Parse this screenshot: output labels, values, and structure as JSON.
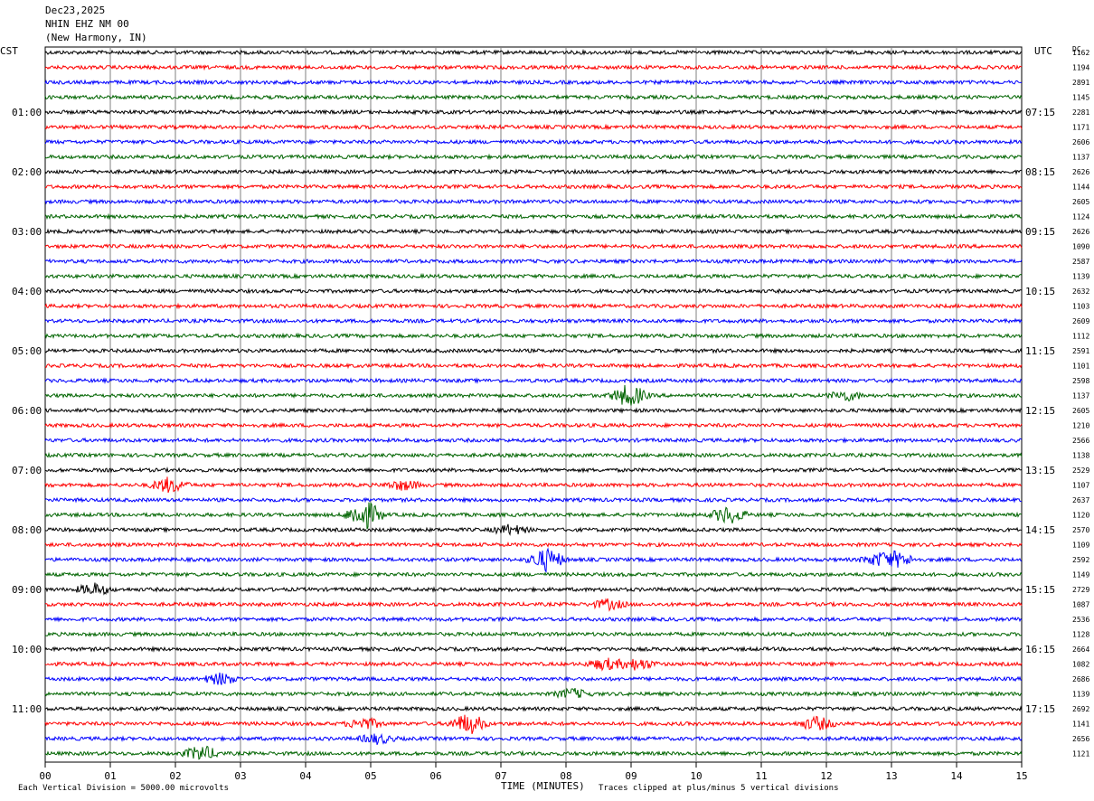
{
  "header": {
    "date": "Dec23,2025",
    "station": "NHIN EHZ NM 00",
    "location": "(New Harmony, IN)"
  },
  "left_label": "CST",
  "right_label": "UTC",
  "dc_label": "DC",
  "footer": {
    "scale": "Each Vertical Division = 5000.00 microvolts",
    "xlabel": "TIME (MINUTES)",
    "clip": "Traces clipped at plus/minus 5 vertical divisions"
  },
  "colors": {
    "trace_cycle": [
      "#000000",
      "#ff0000",
      "#0000ff",
      "#006400"
    ],
    "grid": "#808080"
  },
  "chart_data": {
    "type": "line",
    "title": "",
    "xlabel": "TIME (MINUTES)",
    "xlim": [
      0,
      15
    ],
    "x_ticks": [
      "00",
      "01",
      "02",
      "03",
      "04",
      "05",
      "06",
      "07",
      "08",
      "09",
      "10",
      "11",
      "12",
      "13",
      "14",
      "15"
    ],
    "cst_hour_labels": [
      "01:00",
      "02:00",
      "03:00",
      "04:00",
      "05:00",
      "06:00",
      "07:00",
      "08:00",
      "09:00",
      "10:00",
      "11:00"
    ],
    "utc_hour_labels": [
      "07:15",
      "08:15",
      "09:15",
      "10:15",
      "11:15",
      "12:15",
      "13:15",
      "14:15",
      "15:15",
      "16:15",
      "17:15"
    ],
    "dc_offsets": [
      "1162",
      "1194",
      "2891",
      "1145",
      "2281",
      "1171",
      "2606",
      "1137",
      "2626",
      "1144",
      "2605",
      "1124",
      "2626",
      "1090",
      "2587",
      "1139",
      "2632",
      "1103",
      "2609",
      "1112",
      "2591",
      "1101",
      "2598",
      "1137",
      "2605",
      "1210",
      "2566",
      "1138",
      "2529",
      "1107",
      "2637",
      "1120",
      "2570",
      "1109",
      "2592",
      "1149",
      "2729",
      "1087",
      "2536",
      "1128",
      "2664",
      "1082",
      "2686",
      "1139",
      "2692",
      "1141",
      "2656",
      "1121"
    ],
    "traces_per_hour": 4,
    "trace_count": 48,
    "events": [
      {
        "trace": 23,
        "minute": 8.97,
        "amp": 12
      },
      {
        "trace": 23,
        "minute": 12.3,
        "amp": 5
      },
      {
        "trace": 29,
        "minute": 1.9,
        "amp": 8
      },
      {
        "trace": 29,
        "minute": 5.5,
        "amp": 5
      },
      {
        "trace": 31,
        "minute": 4.9,
        "amp": 16
      },
      {
        "trace": 31,
        "minute": 10.5,
        "amp": 9
      },
      {
        "trace": 32,
        "minute": 7.15,
        "amp": 5
      },
      {
        "trace": 34,
        "minute": 7.7,
        "amp": 12
      },
      {
        "trace": 34,
        "minute": 12.8,
        "amp": 6
      },
      {
        "trace": 34,
        "minute": 13.1,
        "amp": 7
      },
      {
        "trace": 36,
        "minute": 0.75,
        "amp": 6
      },
      {
        "trace": 37,
        "minute": 8.65,
        "amp": 5
      },
      {
        "trace": 41,
        "minute": 8.6,
        "amp": 6
      },
      {
        "trace": 41,
        "minute": 9.1,
        "amp": 6
      },
      {
        "trace": 42,
        "minute": 2.7,
        "amp": 6
      },
      {
        "trace": 43,
        "minute": 8.1,
        "amp": 5
      },
      {
        "trace": 45,
        "minute": 4.9,
        "amp": 6
      },
      {
        "trace": 45,
        "minute": 6.5,
        "amp": 11
      },
      {
        "trace": 45,
        "minute": 11.85,
        "amp": 7
      },
      {
        "trace": 46,
        "minute": 5.1,
        "amp": 5
      },
      {
        "trace": 47,
        "minute": 2.4,
        "amp": 8
      }
    ]
  }
}
